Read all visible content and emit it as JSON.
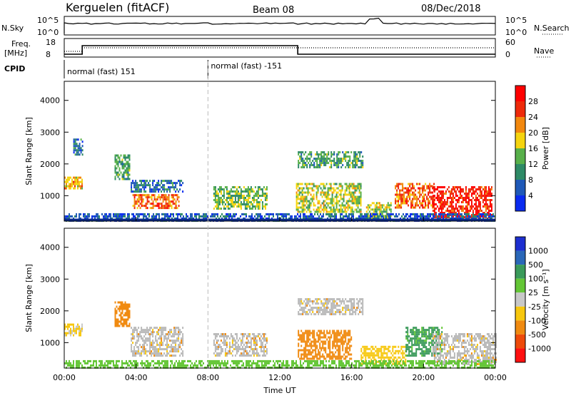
{
  "header": {
    "station": "Kerguelen (fitACF)",
    "beam": "Beam 08",
    "date": "08/Dec/2018"
  },
  "top_panels": {
    "nsky_label": "N.Sky",
    "nsky_ticks": [
      "10^5",
      "10^0"
    ],
    "nsearch_label": "N.Search",
    "nsearch_ticks": [
      "10^5",
      "10^0"
    ],
    "freq_label": "Freq.",
    "freq_unit": "[MHz]",
    "freq_ticks": [
      "18",
      "8"
    ],
    "nave_label": "Nave",
    "nave_ticks": [
      "60",
      "0"
    ],
    "cpid_label": "CPID",
    "cpid_modes": [
      "normal (fast) 151",
      "normal (fast) -151"
    ],
    "cpid_switch_hour": 8.0,
    "freq_switch_hours": [
      1.0,
      13.0
    ]
  },
  "colors": {
    "power_scale": [
      "#0a2bf0",
      "#1f59b8",
      "#2e8a66",
      "#58b04a",
      "#f5d40f",
      "#f2880e",
      "#ee2a0a",
      "#ff0000"
    ],
    "velocity_scale": [
      "#1d2fd0",
      "#2a67b8",
      "#3a9a5a",
      "#64c636",
      "#c8c8c8",
      "#f7c70e",
      "#f08a10",
      "#ee4a0a",
      "#ff1010"
    ],
    "ground_scatter": "#b9b9b9"
  },
  "chart_data": [
    {
      "type": "heatmap",
      "name": "power",
      "xlabel": "",
      "ylabel": "Slant Range [km]",
      "xlim": [
        0,
        24
      ],
      "ylim": [
        200,
        4600
      ],
      "yticks": [
        "4000",
        "3000",
        "2000",
        "1000"
      ],
      "colorbar_label": "Power [dB]",
      "colorbar_ticks": [
        "28",
        "24",
        "20",
        "16",
        "12",
        "8",
        "4"
      ],
      "colorbar_range": [
        0,
        32
      ],
      "regions": [
        {
          "t0": 0.0,
          "t1": 1.0,
          "r0": 1200,
          "r1": 1600,
          "level": 20
        },
        {
          "t0": 0.5,
          "t1": 1.0,
          "r0": 2300,
          "r1": 2800,
          "level": 8
        },
        {
          "t0": 2.8,
          "t1": 3.6,
          "r0": 1500,
          "r1": 2300,
          "level": 12
        },
        {
          "t0": 3.7,
          "t1": 6.6,
          "r0": 1100,
          "r1": 1500,
          "level": 8
        },
        {
          "t0": 3.8,
          "t1": 6.4,
          "r0": 600,
          "r1": 1050,
          "level": 24
        },
        {
          "t0": 8.3,
          "t1": 11.3,
          "r0": 600,
          "r1": 1300,
          "level": 14
        },
        {
          "t0": 12.9,
          "t1": 16.5,
          "r0": 500,
          "r1": 1400,
          "level": 16
        },
        {
          "t0": 13.0,
          "t1": 16.6,
          "r0": 1900,
          "r1": 2400,
          "level": 12
        },
        {
          "t0": 16.8,
          "t1": 18.2,
          "r0": 300,
          "r1": 800,
          "level": 16
        },
        {
          "t0": 18.4,
          "t1": 20.6,
          "r0": 600,
          "r1": 1400,
          "level": 24
        },
        {
          "t0": 20.5,
          "t1": 23.8,
          "r0": 300,
          "r1": 1300,
          "level": 28
        },
        {
          "t0": 0.0,
          "t1": 24.0,
          "r0": 200,
          "r1": 450,
          "level": 6
        }
      ]
    },
    {
      "type": "heatmap",
      "name": "velocity",
      "xlabel": "Time UT",
      "ylabel": "Slant Range [km]",
      "xlim": [
        0,
        24
      ],
      "ylim": [
        200,
        4600
      ],
      "xticks": [
        "00:00",
        "04:00",
        "08:00",
        "12:00",
        "16:00",
        "20:00",
        "00:00"
      ],
      "yticks": [
        "4000",
        "3000",
        "2000",
        "1000"
      ],
      "colorbar_label": "Velocity [m s⁻¹]",
      "colorbar_ticks": [
        "1000",
        "500",
        "100",
        "25",
        "-25",
        "-100",
        "-500",
        "-1000"
      ],
      "regions": [
        {
          "t0": 0.0,
          "t1": 1.0,
          "r0": 1200,
          "r1": 1600,
          "level": "0:-100"
        },
        {
          "t0": 2.8,
          "t1": 3.6,
          "r0": 1500,
          "r1": 2300,
          "level": "-100:-500"
        },
        {
          "t0": 3.7,
          "t1": 6.6,
          "r0": 600,
          "r1": 1500,
          "level": "gs"
        },
        {
          "t0": 8.3,
          "t1": 11.3,
          "r0": 600,
          "r1": 1300,
          "level": "gs"
        },
        {
          "t0": 13.0,
          "t1": 16.6,
          "r0": 1900,
          "r1": 2400,
          "level": "gs"
        },
        {
          "t0": 13.0,
          "t1": 16.0,
          "r0": 500,
          "r1": 1400,
          "level": "-100:-500"
        },
        {
          "t0": 16.5,
          "t1": 19.0,
          "r0": 300,
          "r1": 900,
          "level": "-25:-100"
        },
        {
          "t0": 19.0,
          "t1": 21.0,
          "r0": 600,
          "r1": 1500,
          "level": "25:500"
        },
        {
          "t0": 20.5,
          "t1": 24.0,
          "r0": 300,
          "r1": 1300,
          "level": "gs"
        },
        {
          "t0": 0.0,
          "t1": 24.0,
          "r0": 200,
          "r1": 450,
          "level": "100:25"
        }
      ]
    }
  ]
}
